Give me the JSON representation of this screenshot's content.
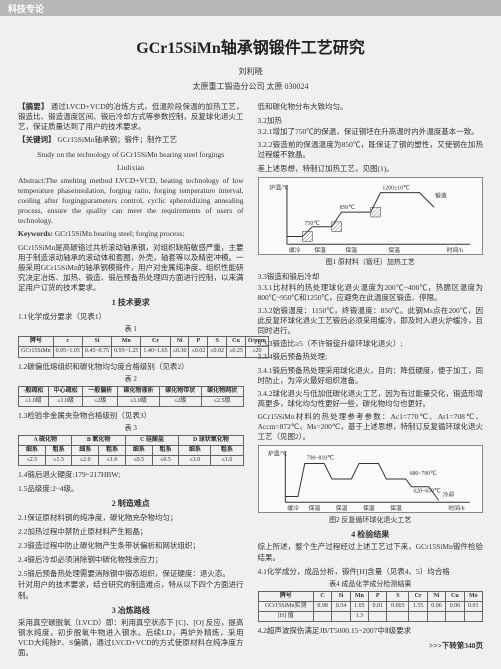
{
  "header_bar": "科技专论",
  "title": "GCr15SiMn轴承钢锻件工艺研究",
  "author": "刘利晓",
  "affiliation": "太原重工锻造分公司  太原  030024",
  "abstract_label_zh": "【摘要】",
  "abstract_zh": "通过LVCD+VCD的冶炼方式，低温阶段保温的加热工艺，锻造比、锻造温度区间、锻后冷却方式等参数控制，反复球化退火工艺，保证质量达到了用户的技术要求。",
  "keywords_label_zh": "【关键词】",
  "keywords_zh": "GCr15SiMn轴承钢；锻件；制作工艺",
  "title_en": "Study on the technology of GCr15SiMn bearing steel forgings",
  "author_en": "Liulixiao",
  "abstract_en": "Abstract:The smelting method LVCD+VCD, heating technology of low temperature phaseinsulation, forging ratio, forging temperature interval, cooling after forgingparameters control, cyclic spheroidizing annealing process, ensure the quality can meet the requirements of users of technology.",
  "keywords_en_label": "Keywords:",
  "keywords_en": "GCr15SiMn bearing steel; forging process;",
  "intro": "GCr15SiMn是高碳铬过共析滚动轴承钢，对组织缺陷敏感严重，主要用于制造滚动轴承的滚动体和套圈，外壳，轴套等以及精密冲模。一般采用GCr15SiMn的轴承钢模锻件，用户对金属纯净度、组织性能研究决定冶炼、加热、锻造、锻后预备热处理四方面进行控制，以来满足用户订货的技术要求。",
  "sec1": "1  技术要求",
  "sec1_1": "1.1化学成分要求（见表1）",
  "tbl1_cap": "表 1",
  "tbl1": {
    "head": [
      "牌号",
      "c",
      "Si",
      "Mn",
      "Cr",
      "Ni",
      "P",
      "S",
      "Cu",
      "O/ppm"
    ],
    "row": [
      "GCr15SiMn",
      "0.95~1.05",
      "0.45~0.75",
      "0.95~1.25",
      "1.40~1.65",
      "≤0.30",
      "≤0.02",
      "≤0.02",
      "≤0.25",
      "≤20"
    ]
  },
  "sec1_2": "1.2碳偏低熔组织和碳化物均匀度合格级别（见表2）",
  "tbl2_cap": "表 2",
  "tbl2": {
    "head": [
      "-般疏松",
      "中心疏松",
      "一般偏析",
      "碳化物液析",
      "碳化物带状",
      "碳化物网状"
    ],
    "row": [
      "≤1.0级",
      "≤1.0级",
      "≤2级",
      "≤1.0级",
      "≤2级",
      "≤2.5级"
    ]
  },
  "sec1_3": "1.3检验非金属夹杂物合格级别（见表3）",
  "tbl3_cap": "表 3",
  "tbl3": {
    "head": [
      "A 硫化物",
      "",
      "B 氧化物",
      "",
      "C 硅酸盐",
      "",
      "D 球状氧化物",
      ""
    ],
    "sub": [
      "细系",
      "粗系",
      "细系",
      "粗系",
      "细系",
      "粗系",
      "细系",
      "粗系"
    ],
    "row": [
      "≤2.5",
      "≤1.5",
      "≤2.0",
      "≤1.0",
      "≤0.5",
      "≤0.5",
      "≤1.0",
      "≤1.0"
    ]
  },
  "sec1_4": "1.4锻后退火硬度:179~217HBW;",
  "sec1_5": "1.5品级度:2~4级。",
  "sec2": "2  制造难点",
  "sec2_1": "2.1保证原材料钢的纯净度，碳化物充杂物均匀；",
  "sec2_2": "2.2加热过程中禁防止原材料产生粗晶；",
  "sec2_3": "2.3锻造过程中防止碳化物产生条带状偏析和网状组织；",
  "sec2_4": "2.4锻后冷却必须消除钢中碳化物残余应力；",
  "sec2_5": "2.5锻后预备热处理需要消除钢中锻态组织，保证硬度：退火态。",
  "para2_tail": "针对用户的技术要求，结合研究的制造难点，特从以下四个方面进行制。",
  "sec3": "3  冶炼路线",
  "para3": "采用真空碳脱氧（LVCD）即：利用真空状态下 [C]、[O] 反应，提高钢水纯度，初步脱氧牛物进入钢水。后续LD，再炉外精炼，采用VCD大纯除P、S偏磷，通过LVCD+VCD的方式使原材料在纯净度方面。",
  "right": {
    "p1": "低和碳化物分布大致均匀。",
    "sec3_2": "3.2加热",
    "sec3_2_1": "3.2.1增加了750℃的保温，保证钢坯在升高温时内外温度基本一致。",
    "sec3_2_2": "3.2.2锻造前的保温温度为850℃，既保证了钢的塑性，又使钢在加热过程缓不致晶。",
    "sec3_2_3": "差上述思想，特制订加热工艺，见图(1)。",
    "fig1": {
      "caption": "图1  原材料（锻坯）加热工艺",
      "temps": [
        "750℃",
        "850℃",
        "1200±10℃"
      ],
      "labels": [
        "缓冷",
        "保温",
        "保温",
        "保温",
        "锻造"
      ],
      "y_label": "炉温/℃",
      "x_label": "时间/h",
      "axis_color": "#333",
      "line_color": "#333",
      "bg": "#fafafa"
    },
    "sec3_3": "3.3锻造和锻后冷却",
    "sec3_3_1": "3.3.1比材料的热处理球化退火温度为200℃~400℃，热脆区温度为800℃~950℃和1250℃，应避免在此温度区锻造、停限。",
    "sec3_3_2": "3.3.2始锻温度：1150℃，终锻温度：850℃。此钢Ms点在200℃，因此反复环球化退火工艺锻后必须采用缓冷，即及时入退火炉缓冷，且同时进行。",
    "sec3_3_3": "3.3.3锻造比≥5（不许锻锭升级环球化退火）;",
    "sec3_3_4": "3.3.4锻后预备热处理;",
    "sec3_4_1": "3.4.1锻后预备热处理采用球化退火，目的：降低硬度，便于加工，同时防止，为淬火最好组织准备。",
    "sec3_4_2": "3.4.2球化退火与低加低碳化退火工艺，因为有过能量交化，锻造形增高更多，球化均匀性更好一些，碳化物均匀也更好。",
    "para3_4_tail": "GCr15SiMn材料的热处理参考参数：Ac1=770℃、Ar1=708℃、Accm=872℃、Ms=200℃，基于上述思想，特制订反复循环球化退火工艺（见图2）。",
    "fig2": {
      "caption": "图2  反复循环球化退火工艺",
      "temps_high": "790~810℃",
      "temps_low": "680~700℃",
      "cool": "620~650℃",
      "labels": [
        "缓冷",
        "保温",
        "保温",
        "保温",
        "保温"
      ],
      "x_label": "时间/h",
      "y_label": "炉温/℃",
      "final": "冷却",
      "line_color": "#333",
      "bg": "#fafafa"
    },
    "sec4": "4  检验结果",
    "para4": "综上所述，整个生产过程经过上述工艺过下来，GCr15SiMn锻件检验结果。",
    "sec4_1": "4.1化学成分，成品分析，锻件[H]含量（见表4、5）均合格",
    "tbl4_cap": "表4  成品化学成分检测结果",
    "tbl4": {
      "head": [
        "牌号",
        "C",
        "Si",
        "Mn",
        "P",
        "S",
        "Cr",
        "Ni",
        "Cu",
        "Mo"
      ],
      "r1": [
        "GCr15SiMn实测",
        "0.98",
        "0.54",
        "1.05",
        "0.01",
        "0.003",
        "1.55",
        "0.06",
        "0.06",
        "0.01"
      ],
      "r2": [
        "[H] 值",
        "",
        "",
        "1.3",
        "",
        "",
        "",
        "",
        "",
        ""
      ]
    },
    "sec4_2": "4.2超声波探伤满足JB/T5000.15~2007中Ⅱ级要求",
    "foot": ">>>下转第348页"
  }
}
